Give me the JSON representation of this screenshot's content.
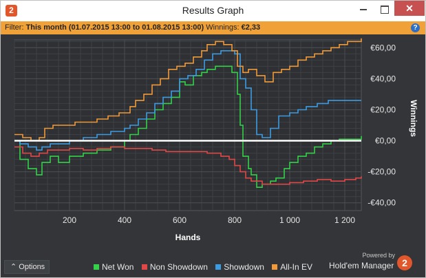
{
  "window": {
    "title": "Results Graph",
    "app_icon_text": "2",
    "close_glyph": "✕"
  },
  "filter": {
    "label": "Filter:",
    "range": "This month (01.07.2015 13:00 to 01.08.2015 13:00)",
    "winnings_label": "Winnings:",
    "winnings_value": "€2,33",
    "help_glyph": "?"
  },
  "footer": {
    "options_label": "⌃ Options",
    "powered_by": "Powered by",
    "brand": "Hold'em Manager",
    "brand_logo_text": "2"
  },
  "colors": {
    "net_won": "#35d14a",
    "non_showdown": "#e04848",
    "showdown": "#3d9be2",
    "all_in_ev": "#f09a3a",
    "zero_line": "#ffffff"
  },
  "chart_data": {
    "type": "line",
    "xlabel": "Hands",
    "ylabel": "Winnings",
    "xlim": [
      0,
      1260
    ],
    "ylim": [
      -45,
      65
    ],
    "x_ticks": [
      200,
      400,
      600,
      800,
      1000,
      1200
    ],
    "x_tick_labels": [
      "200",
      "400",
      "600",
      "800",
      "1 000",
      "1 200"
    ],
    "y_ticks": [
      60,
      40,
      20,
      0,
      -20,
      -40
    ],
    "y_tick_labels": [
      "€60,00",
      "€40,00",
      "€20,00",
      "€0,00",
      "-€20,00",
      "-€40,00"
    ],
    "grid": true,
    "legend_position": "bottom",
    "series": [
      {
        "name": "Net Won",
        "color_key": "net_won",
        "points": [
          [
            0,
            0
          ],
          [
            20,
            -12
          ],
          [
            50,
            -18
          ],
          [
            80,
            -22
          ],
          [
            100,
            -14
          ],
          [
            130,
            -10
          ],
          [
            160,
            -14
          ],
          [
            200,
            -10
          ],
          [
            250,
            -8
          ],
          [
            300,
            -6
          ],
          [
            350,
            -4
          ],
          [
            400,
            0
          ],
          [
            420,
            4
          ],
          [
            450,
            8
          ],
          [
            480,
            14
          ],
          [
            510,
            20
          ],
          [
            540,
            24
          ],
          [
            570,
            28
          ],
          [
            600,
            38
          ],
          [
            620,
            36
          ],
          [
            650,
            42
          ],
          [
            680,
            44
          ],
          [
            700,
            46
          ],
          [
            730,
            48
          ],
          [
            760,
            48
          ],
          [
            790,
            44
          ],
          [
            810,
            30
          ],
          [
            820,
            10
          ],
          [
            830,
            -10
          ],
          [
            850,
            -18
          ],
          [
            860,
            -22
          ],
          [
            880,
            -30
          ],
          [
            900,
            -28
          ],
          [
            930,
            -26
          ],
          [
            950,
            -24
          ],
          [
            980,
            -18
          ],
          [
            1000,
            -14
          ],
          [
            1030,
            -10
          ],
          [
            1060,
            -8
          ],
          [
            1090,
            -4
          ],
          [
            1120,
            -2
          ],
          [
            1150,
            0
          ],
          [
            1180,
            1
          ],
          [
            1210,
            1
          ],
          [
            1240,
            1
          ],
          [
            1260,
            3
          ]
        ]
      },
      {
        "name": "Non Showdown",
        "color_key": "non_showdown",
        "points": [
          [
            0,
            -4
          ],
          [
            30,
            -8
          ],
          [
            60,
            -10
          ],
          [
            90,
            -8
          ],
          [
            120,
            -6
          ],
          [
            160,
            -6
          ],
          [
            200,
            -5
          ],
          [
            250,
            -6
          ],
          [
            300,
            -5
          ],
          [
            350,
            -4
          ],
          [
            400,
            -5
          ],
          [
            450,
            -5
          ],
          [
            500,
            -6
          ],
          [
            550,
            -7
          ],
          [
            600,
            -7
          ],
          [
            650,
            -7
          ],
          [
            700,
            -8
          ],
          [
            750,
            -10
          ],
          [
            780,
            -12
          ],
          [
            800,
            -16
          ],
          [
            820,
            -20
          ],
          [
            840,
            -24
          ],
          [
            860,
            -26
          ],
          [
            900,
            -28
          ],
          [
            950,
            -28
          ],
          [
            1000,
            -27
          ],
          [
            1050,
            -26
          ],
          [
            1100,
            -25
          ],
          [
            1150,
            -26
          ],
          [
            1200,
            -25
          ],
          [
            1240,
            -24
          ],
          [
            1260,
            -23
          ]
        ]
      },
      {
        "name": "Showdown",
        "color_key": "showdown",
        "points": [
          [
            0,
            0
          ],
          [
            20,
            -2
          ],
          [
            50,
            -4
          ],
          [
            80,
            -6
          ],
          [
            100,
            -4
          ],
          [
            130,
            -2
          ],
          [
            160,
            -2
          ],
          [
            200,
            0
          ],
          [
            250,
            2
          ],
          [
            300,
            4
          ],
          [
            350,
            6
          ],
          [
            400,
            8
          ],
          [
            420,
            10
          ],
          [
            450,
            14
          ],
          [
            480,
            18
          ],
          [
            510,
            24
          ],
          [
            540,
            28
          ],
          [
            570,
            32
          ],
          [
            600,
            40
          ],
          [
            630,
            42
          ],
          [
            660,
            46
          ],
          [
            690,
            52
          ],
          [
            720,
            56
          ],
          [
            750,
            58
          ],
          [
            780,
            58
          ],
          [
            800,
            56
          ],
          [
            820,
            40
          ],
          [
            840,
            34
          ],
          [
            860,
            20
          ],
          [
            880,
            4
          ],
          [
            900,
            2
          ],
          [
            930,
            8
          ],
          [
            960,
            16
          ],
          [
            1000,
            18
          ],
          [
            1030,
            20
          ],
          [
            1060,
            22
          ],
          [
            1100,
            24
          ],
          [
            1140,
            26
          ],
          [
            1180,
            26
          ],
          [
            1220,
            26
          ],
          [
            1260,
            26
          ]
        ]
      },
      {
        "name": "All-In EV",
        "color_key": "all_in_ev",
        "points": [
          [
            0,
            4
          ],
          [
            30,
            2
          ],
          [
            60,
            0
          ],
          [
            90,
            2
          ],
          [
            110,
            8
          ],
          [
            140,
            10
          ],
          [
            180,
            10
          ],
          [
            220,
            12
          ],
          [
            260,
            12
          ],
          [
            300,
            14
          ],
          [
            340,
            16
          ],
          [
            380,
            18
          ],
          [
            420,
            22
          ],
          [
            440,
            26
          ],
          [
            470,
            30
          ],
          [
            500,
            36
          ],
          [
            530,
            40
          ],
          [
            560,
            46
          ],
          [
            590,
            48
          ],
          [
            620,
            50
          ],
          [
            650,
            54
          ],
          [
            680,
            58
          ],
          [
            700,
            62
          ],
          [
            730,
            64
          ],
          [
            760,
            62
          ],
          [
            790,
            58
          ],
          [
            810,
            48
          ],
          [
            830,
            44
          ],
          [
            850,
            46
          ],
          [
            880,
            42
          ],
          [
            910,
            38
          ],
          [
            940,
            44
          ],
          [
            970,
            46
          ],
          [
            1000,
            48
          ],
          [
            1030,
            52
          ],
          [
            1060,
            54
          ],
          [
            1090,
            56
          ],
          [
            1120,
            58
          ],
          [
            1150,
            60
          ],
          [
            1180,
            62
          ],
          [
            1210,
            64
          ],
          [
            1240,
            64
          ],
          [
            1260,
            66
          ]
        ]
      }
    ]
  }
}
